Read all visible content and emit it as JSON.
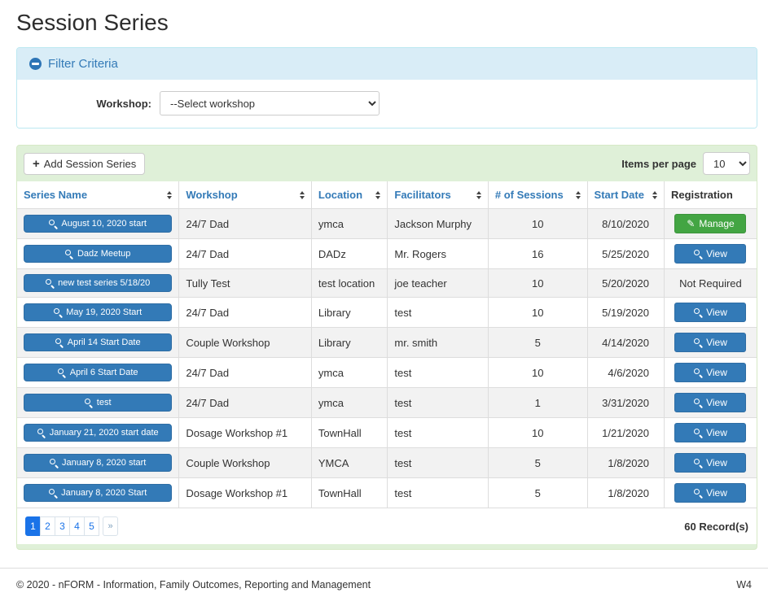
{
  "page": {
    "title": "Session Series"
  },
  "filter": {
    "title": "Filter Criteria",
    "collapse_icon": "minus-circle-icon",
    "workshop_label": "Workshop:",
    "workshop_selected": "--Select workshop"
  },
  "toolbar": {
    "add_button_label": "Add Session Series",
    "add_button_icon": "plus-icon",
    "items_per_page_label": "Items per page",
    "items_per_page_value": "10"
  },
  "table": {
    "headers": [
      {
        "label": "Series Name",
        "sortable": true
      },
      {
        "label": "Workshop",
        "sortable": true
      },
      {
        "label": "Location",
        "sortable": true
      },
      {
        "label": "Facilitators",
        "sortable": true
      },
      {
        "label": "# of Sessions",
        "sortable": true
      },
      {
        "label": "Start Date",
        "sortable": true
      },
      {
        "label": "Registration",
        "sortable": false
      }
    ],
    "rows": [
      {
        "series": "August 10, 2020 start",
        "workshop": "24/7 Dad",
        "location": "ymca",
        "facilitators": "Jackson Murphy",
        "sessions": "10",
        "start_date": "8/10/2020",
        "registration": {
          "type": "manage",
          "label": "Manage"
        }
      },
      {
        "series": "Dadz Meetup",
        "workshop": "24/7 Dad",
        "location": "DADz",
        "facilitators": "Mr. Rogers",
        "sessions": "16",
        "start_date": "5/25/2020",
        "registration": {
          "type": "view",
          "label": "View"
        }
      },
      {
        "series": "new test series 5/18/20",
        "workshop": "Tully Test",
        "location": "test location",
        "facilitators": "joe teacher",
        "sessions": "10",
        "start_date": "5/20/2020",
        "registration": {
          "type": "text",
          "label": "Not Required"
        }
      },
      {
        "series": "May 19, 2020 Start",
        "workshop": "24/7 Dad",
        "location": "Library",
        "facilitators": "test",
        "sessions": "10",
        "start_date": "5/19/2020",
        "registration": {
          "type": "view",
          "label": "View"
        }
      },
      {
        "series": "April 14 Start Date",
        "workshop": "Couple Workshop",
        "location": "Library",
        "facilitators": "mr. smith",
        "sessions": "5",
        "start_date": "4/14/2020",
        "registration": {
          "type": "view",
          "label": "View"
        }
      },
      {
        "series": "April 6 Start Date",
        "workshop": "24/7 Dad",
        "location": "ymca",
        "facilitators": "test",
        "sessions": "10",
        "start_date": "4/6/2020",
        "registration": {
          "type": "view",
          "label": "View"
        }
      },
      {
        "series": "test",
        "workshop": "24/7 Dad",
        "location": "ymca",
        "facilitators": "test",
        "sessions": "1",
        "start_date": "3/31/2020",
        "registration": {
          "type": "view",
          "label": "View"
        }
      },
      {
        "series": "January 21, 2020 start date",
        "workshop": "Dosage Workshop #1",
        "location": "TownHall",
        "facilitators": "test",
        "sessions": "10",
        "start_date": "1/21/2020",
        "registration": {
          "type": "view",
          "label": "View"
        }
      },
      {
        "series": "January 8, 2020 start",
        "workshop": "Couple Workshop",
        "location": "YMCA",
        "facilitators": "test",
        "sessions": "5",
        "start_date": "1/8/2020",
        "registration": {
          "type": "view",
          "label": "View"
        }
      },
      {
        "series": "January 8, 2020 Start",
        "workshop": "Dosage Workshop #1",
        "location": "TownHall",
        "facilitators": "test",
        "sessions": "5",
        "start_date": "1/8/2020",
        "registration": {
          "type": "view",
          "label": "View"
        }
      }
    ]
  },
  "pagination": {
    "pages": [
      "1",
      "2",
      "3",
      "4",
      "5",
      "»"
    ],
    "active": "1",
    "record_count": "60 Record(s)"
  },
  "footer": {
    "copyright": "© 2020 - nFORM - Information, Family Outcomes, Reporting and Management",
    "version": "W4"
  },
  "icons": {
    "collapse": "minus-circle",
    "add": "plus",
    "series_link": "magnifier",
    "view": "magnifier",
    "manage": "pencil",
    "sort": "up-down-arrows"
  },
  "colors": {
    "accent_blue": "#337ab7",
    "filter_header_bg": "#d9edf7",
    "filter_border": "#bce8f1",
    "grid_panel_bg": "#dff0d8",
    "grid_panel_border": "#d6e9c6",
    "manage_green": "#43a543",
    "pagination_active": "#1a73e8",
    "row_stripe": "#f2f2f2"
  }
}
